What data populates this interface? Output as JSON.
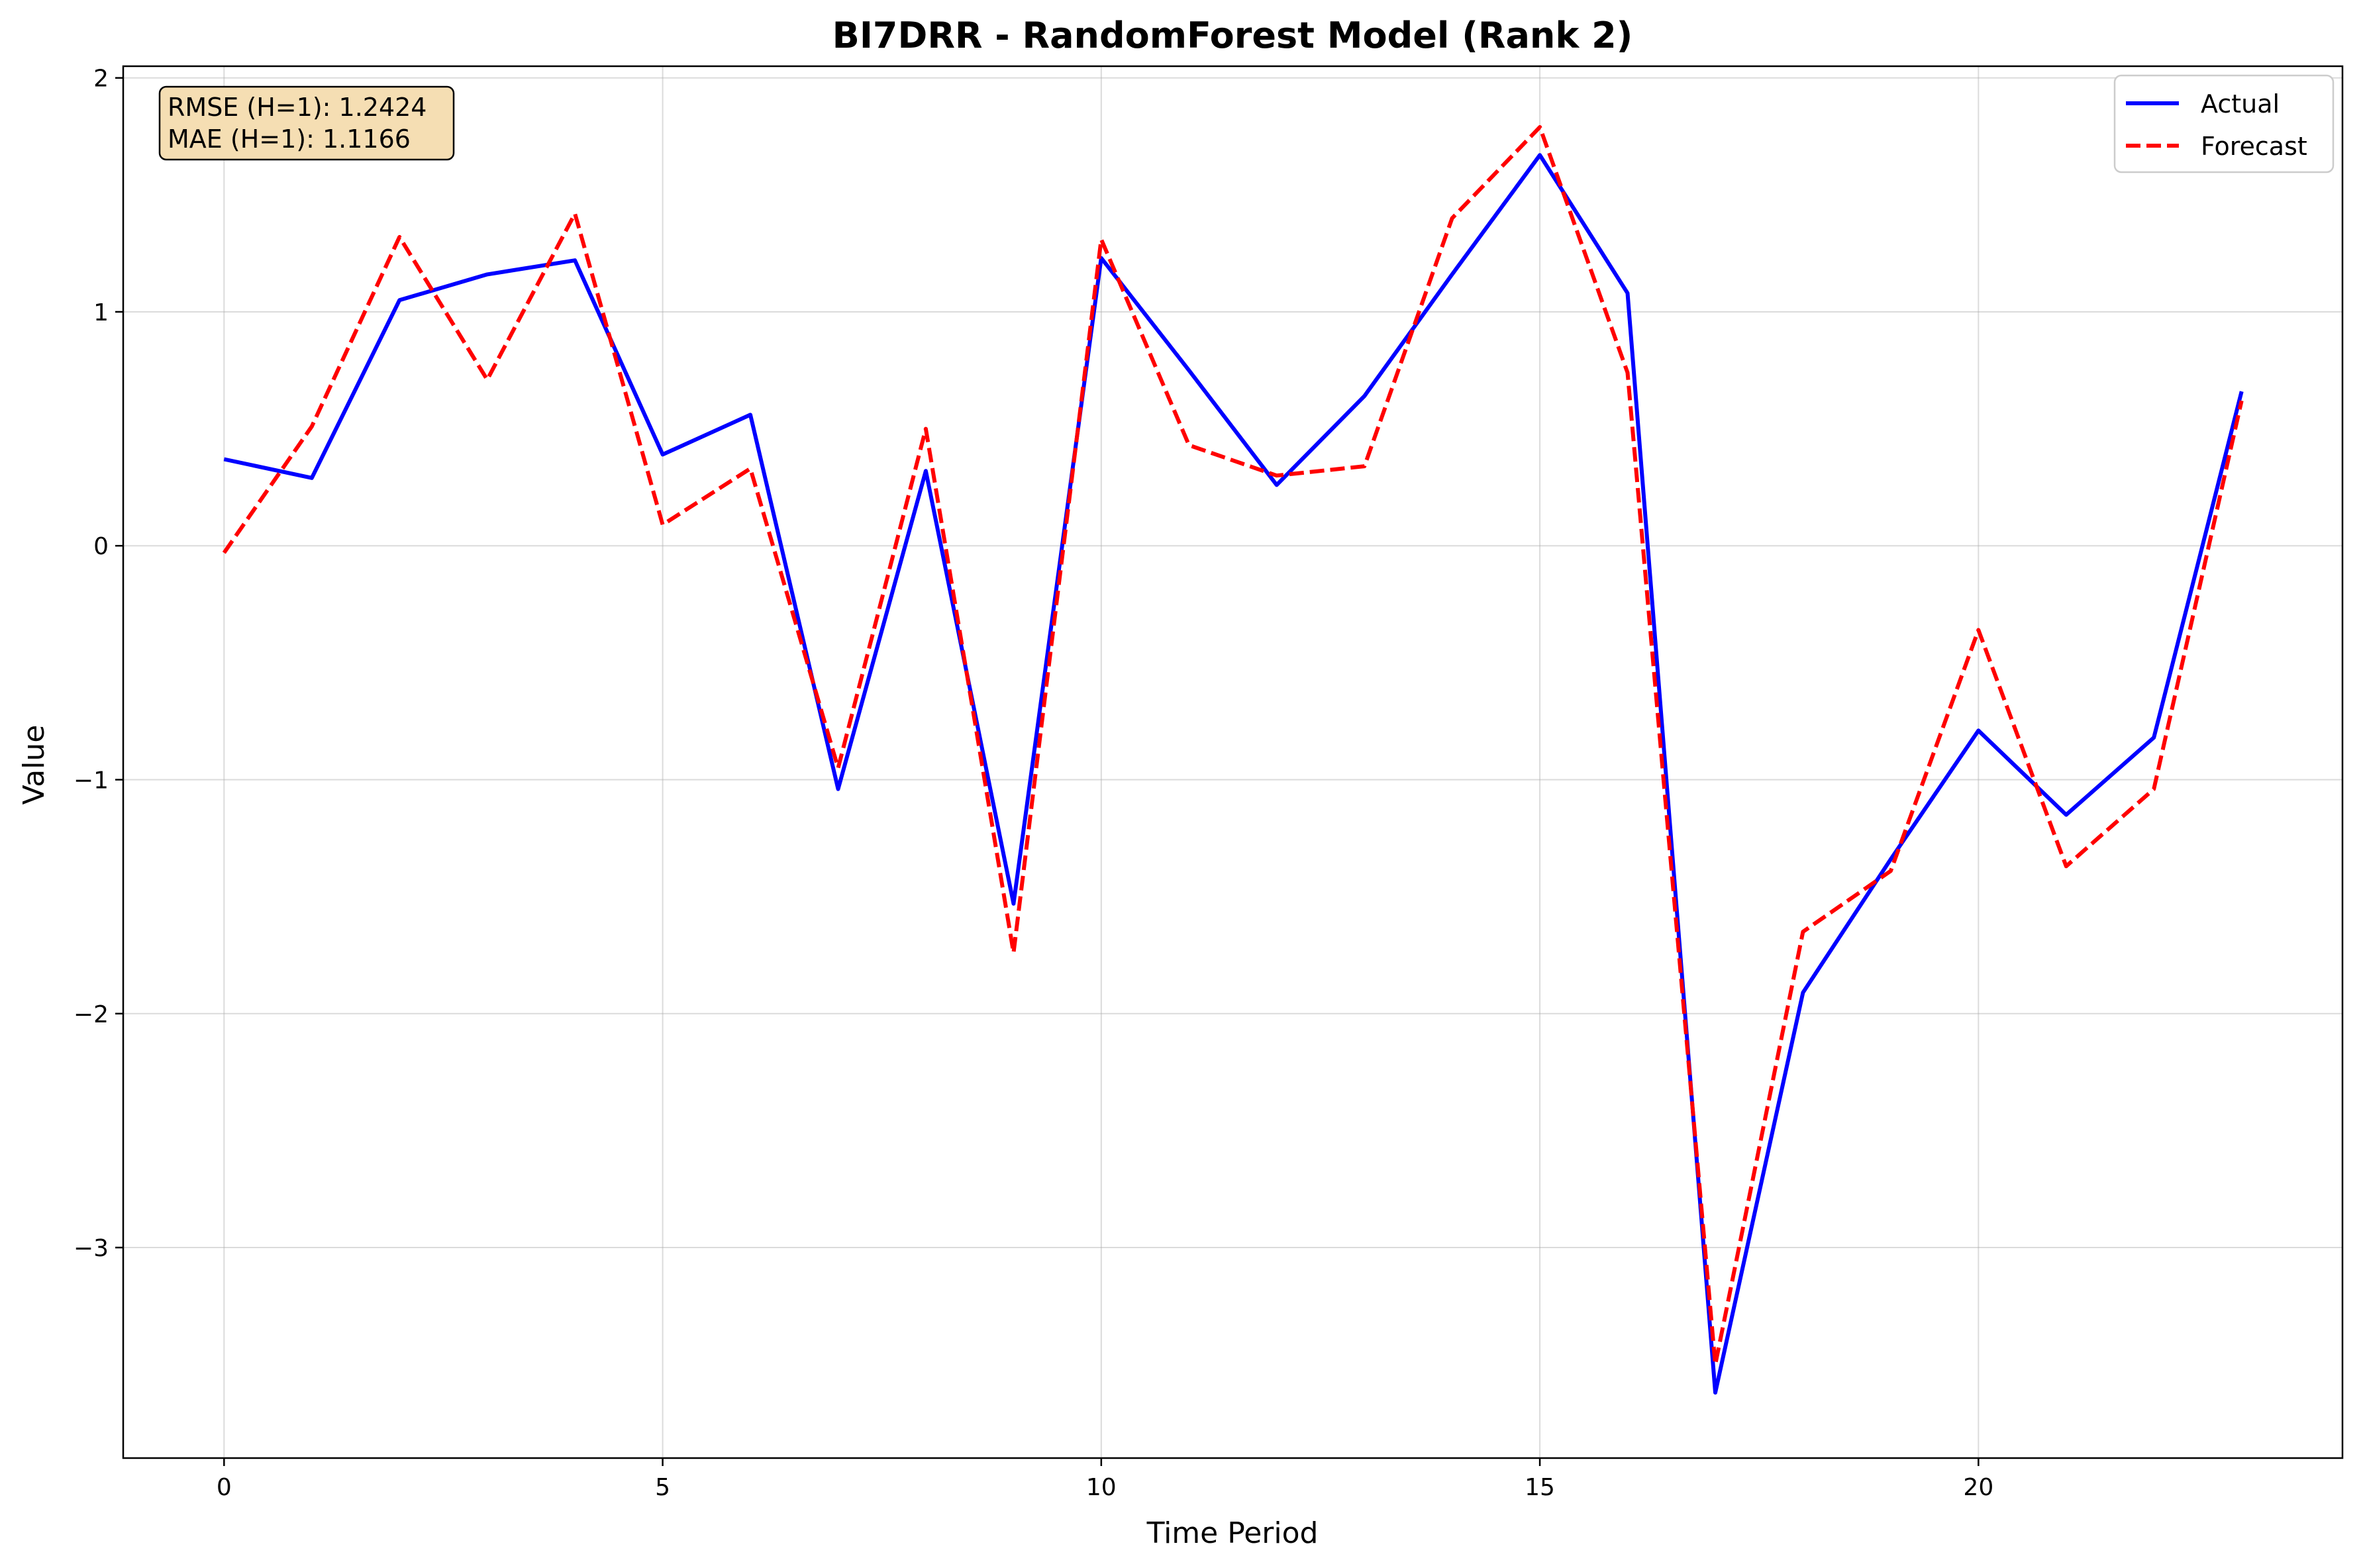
{
  "chart_data": {
    "type": "line",
    "title": "BI7DRR - RandomForest Model (Rank 2)",
    "xlabel": "Time Period",
    "ylabel": "Value",
    "xlim": [
      -1.15,
      24.15
    ],
    "ylim": [
      -3.9,
      2.05
    ],
    "xticks": [
      0,
      5,
      10,
      15,
      20
    ],
    "yticks": [
      2,
      1,
      0,
      -1,
      -2,
      -3
    ],
    "xtick_labels": [
      "0",
      "5",
      "10",
      "15",
      "20"
    ],
    "ytick_labels": [
      "2",
      "1",
      "0",
      "−1",
      "−2",
      "−3"
    ],
    "grid": true,
    "legend_position": "top-right",
    "x": [
      0,
      1,
      2,
      3,
      4,
      5,
      6,
      7,
      8,
      9,
      10,
      11,
      12,
      13,
      14,
      15,
      16,
      17,
      18,
      19,
      20,
      21,
      22,
      23
    ],
    "series": [
      {
        "name": "Actual",
        "color": "#0000ff",
        "style": "solid",
        "values": [
          0.37,
          0.29,
          1.05,
          1.16,
          1.22,
          0.39,
          0.56,
          -1.04,
          0.32,
          -1.53,
          1.23,
          0.75,
          0.26,
          0.64,
          1.16,
          1.67,
          1.08,
          -3.62,
          -1.91,
          -1.34,
          -0.79,
          -1.15,
          -0.82,
          0.66
        ]
      },
      {
        "name": "Forecast",
        "color": "#ff0000",
        "style": "dashed",
        "values": [
          -0.03,
          0.51,
          1.32,
          0.71,
          1.42,
          0.09,
          0.33,
          -0.95,
          0.5,
          -1.74,
          1.31,
          0.43,
          0.3,
          0.34,
          1.4,
          1.79,
          0.74,
          -3.5,
          -1.65,
          -1.39,
          -0.36,
          -1.37,
          -1.04,
          0.62
        ]
      }
    ],
    "annotation": {
      "lines": [
        "RMSE (H=1): 1.2424",
        "MAE (H=1): 1.1166"
      ],
      "background": "#f5deb3",
      "position": "top-left"
    }
  }
}
